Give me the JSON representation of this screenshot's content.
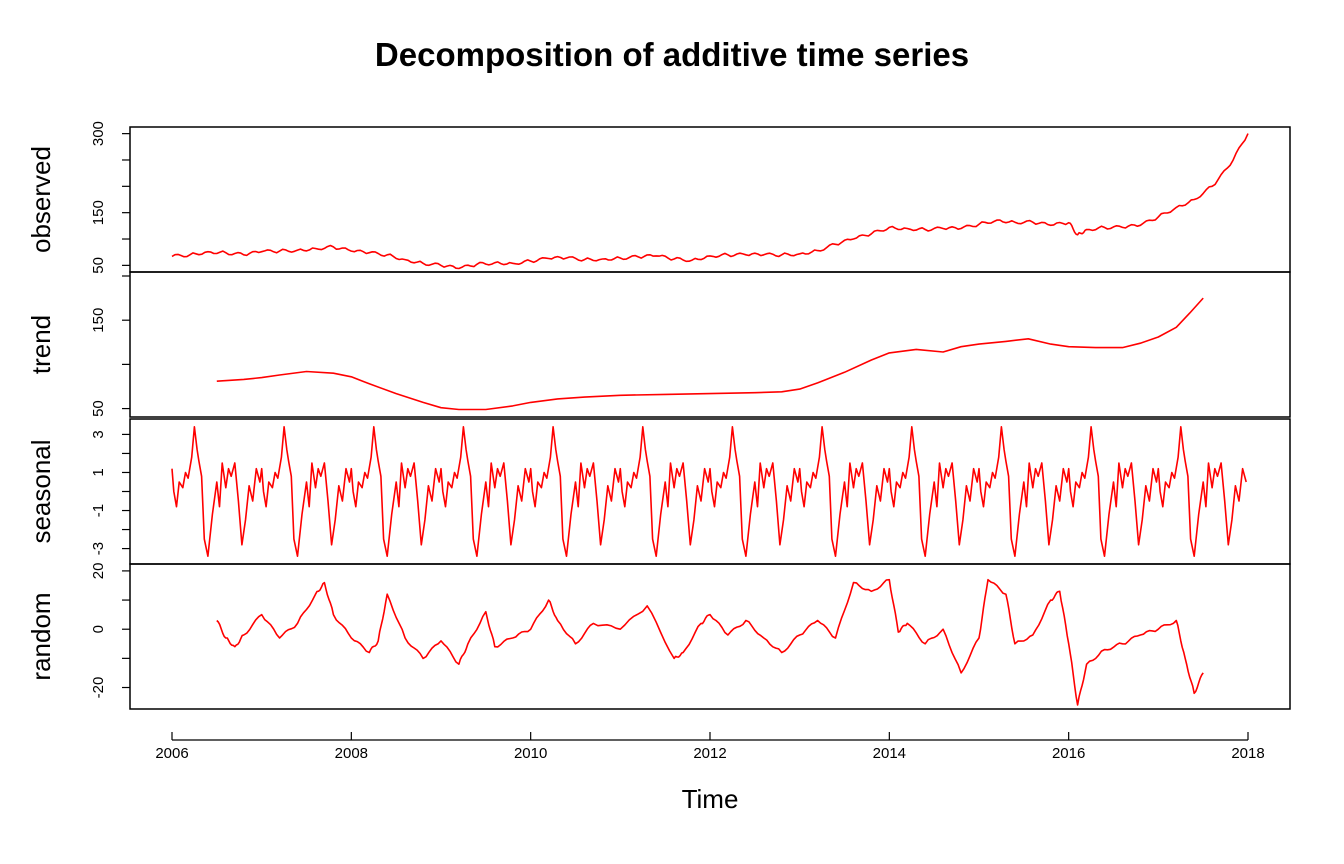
{
  "title": "Decomposition of additive time series",
  "chart_data": {
    "type": "line",
    "title": "Decomposition of additive time series",
    "xlabel": "Time",
    "xlim": [
      2006,
      2018
    ],
    "x_ticks": [
      2006,
      2008,
      2010,
      2012,
      2014,
      2016,
      2018
    ],
    "line_color": "#ff0000",
    "grid": false,
    "panels": [
      {
        "name": "observed",
        "ylabel": "observed",
        "ylim": [
          45,
          305
        ],
        "y_ticks": [
          50,
          150,
          300
        ],
        "y_minor_ticks": [
          100,
          200,
          250
        ],
        "series": [
          {
            "x": [
              2006.0,
              2006.2,
              2006.4,
              2006.6,
              2006.8,
              2007.0,
              2007.2,
              2007.4,
              2007.6,
              2007.8,
              2008.0,
              2008.2,
              2008.4,
              2008.6,
              2008.8,
              2009.0,
              2009.2,
              2009.4,
              2009.6,
              2009.8,
              2010.0,
              2010.2,
              2010.4,
              2010.6,
              2010.8,
              2011.0,
              2011.2,
              2011.4,
              2011.6,
              2011.8,
              2012.0,
              2012.2,
              2012.4,
              2012.6,
              2012.8,
              2013.0,
              2013.2,
              2013.4,
              2013.6,
              2013.8,
              2014.0,
              2014.2,
              2014.4,
              2014.6,
              2014.8,
              2015.0,
              2015.2,
              2015.4,
              2015.6,
              2015.8,
              2016.0,
              2016.1,
              2016.2,
              2016.4,
              2016.6,
              2016.8,
              2017.0,
              2017.2,
              2017.4,
              2017.6,
              2017.8,
              2018.0
            ],
            "y": [
              67,
              70,
              76,
              74,
              70,
              76,
              77,
              79,
              82,
              85,
              77,
              74,
              70,
              61,
              54,
              50,
              44,
              52,
              55,
              54,
              58,
              63,
              64,
              61,
              62,
              64,
              66,
              68,
              62,
              60,
              68,
              70,
              70,
              70,
              70,
              72,
              78,
              90,
              100,
              110,
              122,
              120,
              118,
              120,
              120,
              128,
              136,
              132,
              132,
              126,
              131,
              108,
              118,
              122,
              122,
              126,
              142,
              160,
              175,
              200,
              240,
              300
            ]
          }
        ]
      },
      {
        "name": "trend",
        "ylabel": "trend",
        "ylim": [
          45,
          200
        ],
        "y_ticks": [
          50,
          150
        ],
        "y_minor_ticks": [
          100,
          200
        ],
        "series": [
          {
            "x": [
              2006.5,
              2006.8,
              2007.0,
              2007.2,
              2007.5,
              2007.8,
              2008.0,
              2008.2,
              2008.5,
              2008.8,
              2009.0,
              2009.2,
              2009.5,
              2009.8,
              2010.0,
              2010.3,
              2010.6,
              2011.0,
              2011.5,
              2012.0,
              2012.5,
              2012.8,
              2013.0,
              2013.2,
              2013.5,
              2013.8,
              2014.0,
              2014.3,
              2014.6,
              2014.8,
              2015.0,
              2015.3,
              2015.55,
              2015.8,
              2016.0,
              2016.3,
              2016.6,
              2016.8,
              2017.0,
              2017.2,
              2017.35,
              2017.5
            ],
            "y": [
              81,
              83,
              85,
              88,
              92,
              90,
              86,
              78,
              67,
              57,
              51,
              49,
              49,
              53,
              57,
              61,
              63,
              65,
              66,
              67,
              68,
              69,
              72,
              79,
              91,
              105,
              113,
              117,
              114,
              120,
              123,
              126,
              129,
              123,
              120,
              119,
              119,
              124,
              131,
              142,
              158,
              175
            ]
          }
        ]
      },
      {
        "name": "seasonal",
        "ylabel": "seasonal",
        "ylim": [
          -3.6,
          3.6
        ],
        "y_ticks": [
          -3,
          -1,
          1,
          3
        ],
        "y_minor_ticks": [
          -2,
          0,
          2
        ],
        "period_years": 1,
        "series": [
          {
            "x": [
              0,
              0.02,
              0.05,
              0.08,
              0.12,
              0.15,
              0.18,
              0.22,
              0.25,
              0.28,
              0.3,
              0.33,
              0.36,
              0.4,
              0.45,
              0.5,
              0.53,
              0.56,
              0.6,
              0.63,
              0.66,
              0.7,
              0.74,
              0.78,
              0.82,
              0.86,
              0.9,
              0.94,
              0.98
            ],
            "y": [
              1.2,
              0,
              -0.8,
              0.5,
              0.2,
              1.0,
              0.7,
              1.8,
              3.4,
              2.2,
              1.6,
              0.8,
              -2.5,
              -3.4,
              -1.2,
              0.5,
              -0.8,
              1.5,
              0.2,
              1.2,
              0.8,
              1.5,
              -0.5,
              -2.8,
              -1.5,
              0.3,
              -0.5,
              1.2,
              0.5
            ]
          }
        ]
      },
      {
        "name": "random",
        "ylabel": "random",
        "ylim": [
          -26,
          21
        ],
        "y_ticks": [
          -20,
          0,
          20
        ],
        "y_minor_ticks": [
          -10,
          10
        ],
        "series": [
          {
            "x": [
              2006.5,
              2006.6,
              2006.7,
              2006.8,
              2007.0,
              2007.2,
              2007.4,
              2007.6,
              2007.7,
              2007.8,
              2008.0,
              2008.2,
              2008.3,
              2008.4,
              2008.6,
              2008.8,
              2009.0,
              2009.2,
              2009.3,
              2009.5,
              2009.6,
              2009.8,
              2010.0,
              2010.2,
              2010.3,
              2010.5,
              2010.7,
              2011.0,
              2011.3,
              2011.6,
              2011.7,
              2011.9,
              2012.0,
              2012.2,
              2012.4,
              2012.6,
              2012.8,
              2013.0,
              2013.2,
              2013.4,
              2013.6,
              2013.8,
              2014.0,
              2014.1,
              2014.2,
              2014.4,
              2014.6,
              2014.8,
              2015.0,
              2015.1,
              2015.3,
              2015.4,
              2015.6,
              2015.8,
              2015.9,
              2016.0,
              2016.1,
              2016.2,
              2016.4,
              2016.6,
              2016.8,
              2017.0,
              2017.2,
              2017.3,
              2017.4,
              2017.5
            ],
            "y": [
              3,
              -3,
              -6,
              -2,
              5,
              -3,
              2,
              12,
              16,
              5,
              -3,
              -8,
              -4,
              12,
              -3,
              -10,
              -4,
              -12,
              -5,
              6,
              -6,
              -3,
              0,
              10,
              3,
              -5,
              2,
              0,
              8,
              -10,
              -8,
              2,
              5,
              -2,
              3,
              -3,
              -8,
              -2,
              3,
              -3,
              16,
              13,
              17,
              -1,
              2,
              -5,
              0,
              -15,
              -3,
              17,
              12,
              -5,
              -2,
              10,
              13,
              -5,
              -26,
              -12,
              -7,
              -5,
              -2,
              0,
              3,
              -10,
              -22,
              -15
            ]
          }
        ]
      }
    ]
  }
}
